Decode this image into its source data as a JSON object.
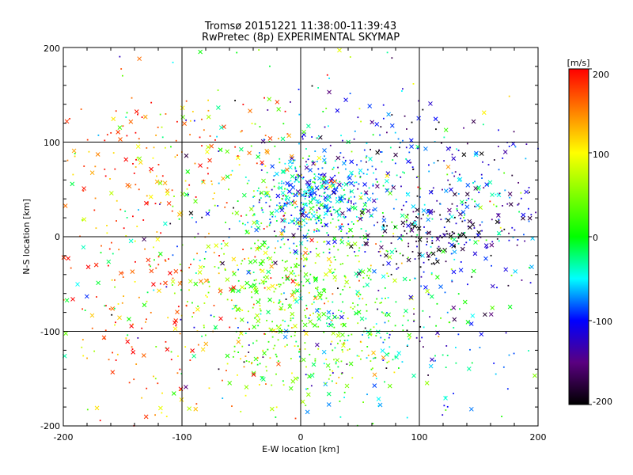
{
  "chart_data": {
    "type": "scatter",
    "title": "Tromsø 20151221 11:38:00-11:39:43",
    "subtitle": "RwPretec (8p) EXPERIMENTAL SKYMAP",
    "xlabel": "E-W location [km]",
    "ylabel": "N-S location [km]",
    "xlim": [
      -200,
      200
    ],
    "ylim": [
      -200,
      200
    ],
    "xticks": [
      "-200",
      "-100",
      "0",
      "100",
      "200"
    ],
    "yticks": [
      "-200",
      "-100",
      "0",
      "100",
      "200"
    ],
    "grid": true,
    "colorbar": {
      "unit": "[m/s]",
      "range": [
        -200,
        200
      ],
      "ticks": [
        "200",
        "100",
        "0",
        "-100",
        "-200"
      ],
      "colormap": [
        "#000000",
        "#5a0080",
        "#0000ff",
        "#00ffff",
        "#00ff00",
        "#ffff00",
        "#ff0000"
      ]
    },
    "marker_types": [
      "cross",
      "dot"
    ],
    "clusters": [
      {
        "x": 15,
        "y": 40,
        "sx": 28,
        "sy": 22,
        "v": -60,
        "sv": 45,
        "n": 420
      },
      {
        "x": 5,
        "y": -70,
        "sx": 45,
        "sy": 50,
        "v": 30,
        "sv": 45,
        "n": 520
      },
      {
        "x": 105,
        "y": 0,
        "sx": 25,
        "sy": 18,
        "v": -180,
        "sv": 30,
        "n": 110
      },
      {
        "x": 150,
        "y": 15,
        "sx": 35,
        "sy": 30,
        "v": -90,
        "sv": 60,
        "n": 160
      },
      {
        "x": 90,
        "y": 75,
        "sx": 55,
        "sy": 35,
        "v": -120,
        "sv": 50,
        "n": 180
      },
      {
        "x": -120,
        "y": 90,
        "sx": 45,
        "sy": 40,
        "v": 170,
        "sv": 40,
        "n": 120
      },
      {
        "x": -150,
        "y": -80,
        "sx": 30,
        "sy": 70,
        "v": 170,
        "sv": 40,
        "n": 110
      },
      {
        "x": -80,
        "y": -80,
        "sx": 40,
        "sy": 60,
        "v": 110,
        "sv": 70,
        "n": 160
      },
      {
        "x": 90,
        "y": -100,
        "sx": 60,
        "sy": 60,
        "v": -80,
        "sv": 60,
        "n": 170
      },
      {
        "x": -40,
        "y": 60,
        "sx": 50,
        "sy": 50,
        "v": 60,
        "sv": 80,
        "n": 140
      },
      {
        "x": 0,
        "y": 0,
        "sx": 120,
        "sy": 110,
        "v": 0,
        "sv": 110,
        "n": 300
      }
    ]
  }
}
